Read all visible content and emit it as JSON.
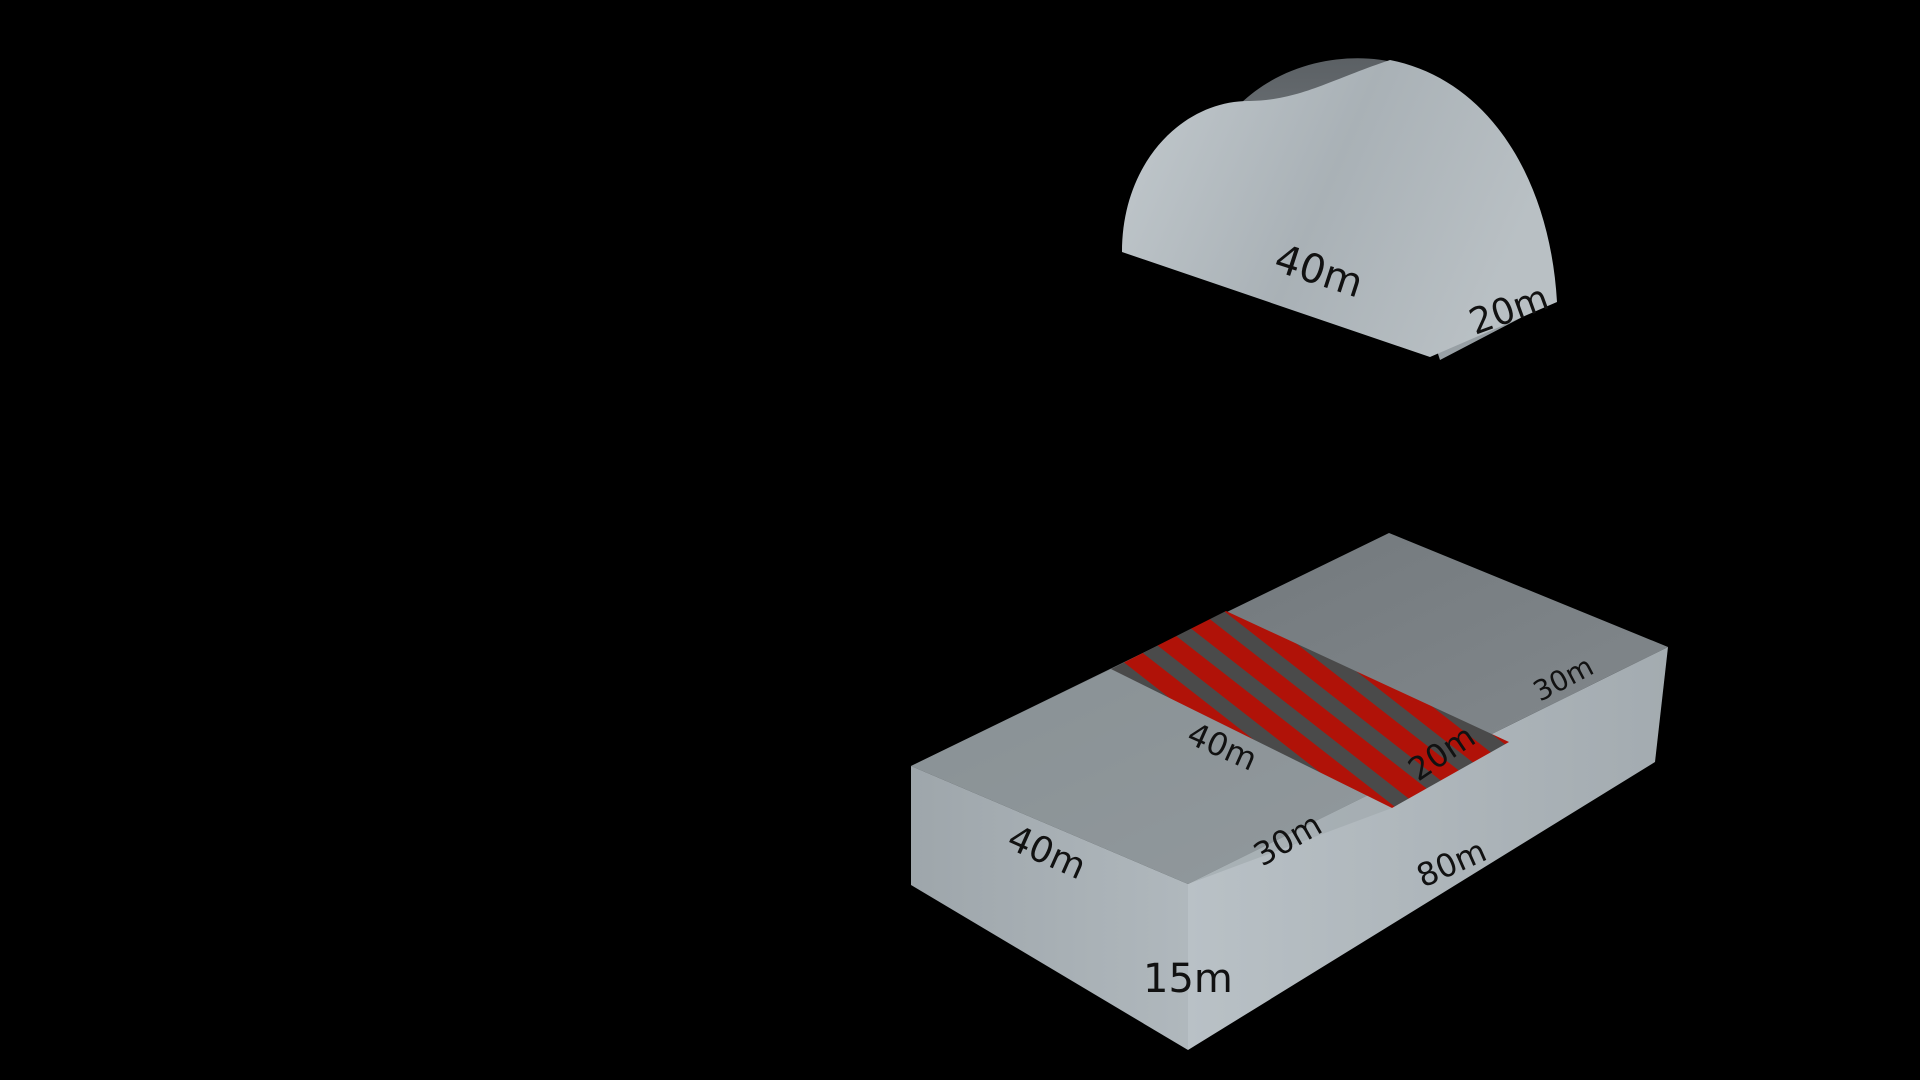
{
  "colors": {
    "background": "#000000",
    "block_top": "#7b8185",
    "block_left": "#a8b0b5",
    "block_front": "#b4bcc1",
    "dome": "#a9b1b6",
    "stripe_red": "#b01208",
    "stripe_dark": "#4a4a4a",
    "label_text": "#111111"
  },
  "half_cylinder": {
    "length_label": "40m",
    "radius_label": "20m"
  },
  "block": {
    "top_slot_length_label": "40m",
    "top_slot_width_label": "20m",
    "top_right_width_label": "30m",
    "top_left_width_label": "30m",
    "left_depth_label": "40m",
    "front_length_label": "80m",
    "height_label": "15m"
  }
}
